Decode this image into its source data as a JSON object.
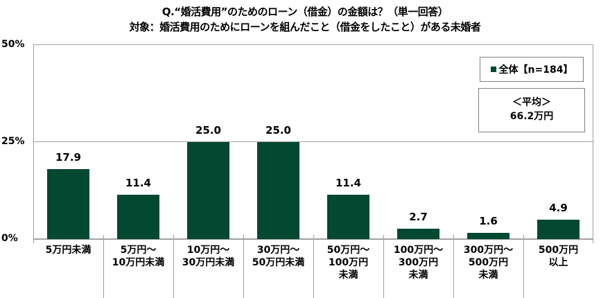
{
  "header": {
    "title": "Q.“婚活費用”のためのローン（借金）の金額は？（単一回答）",
    "subtitle": "対象：婚活費用のためにローンを組んだこと（借金をしたこと）がある未婚者"
  },
  "legend": {
    "label": "全体【n=184】",
    "swatch_color": "#034831"
  },
  "average": {
    "label": "＜平均＞",
    "value": "66.2万円"
  },
  "axis": {
    "y_ticks": [
      "50%",
      "25%",
      "0%"
    ]
  },
  "chart_data": {
    "type": "bar",
    "title": "Q.“婚活費用”のためのローン（借金）の金額は？（単一回答）",
    "subtitle": "対象：婚活費用のためにローンを組んだこと（借金をしたこと）がある未婚者",
    "categories": [
      "5万円未満",
      "5万円～\n10万円未満",
      "10万円～\n30万円未満",
      "30万円～\n50万円未満",
      "50万円～\n100万円\n未満",
      "100万円～\n300万円\n未満",
      "300万円～\n500万円\n未満",
      "500万円\n以上"
    ],
    "series": [
      {
        "name": "全体【n=184】",
        "color": "#034831",
        "values": [
          17.9,
          11.4,
          25.0,
          25.0,
          11.4,
          2.7,
          1.6,
          4.9
        ]
      }
    ],
    "value_labels": [
      "17.9",
      "11.4",
      "25.0",
      "25.0",
      "11.4",
      "2.7",
      "1.6",
      "4.9"
    ],
    "xlabel": "",
    "ylabel": "",
    "ylim": [
      0,
      50
    ],
    "yticks": [
      0,
      25,
      50
    ],
    "ytick_labels": [
      "0%",
      "25%",
      "50%"
    ],
    "grid": true,
    "legend_position": "top-right",
    "annotations": [
      "＜平均＞ 66.2万円"
    ]
  }
}
